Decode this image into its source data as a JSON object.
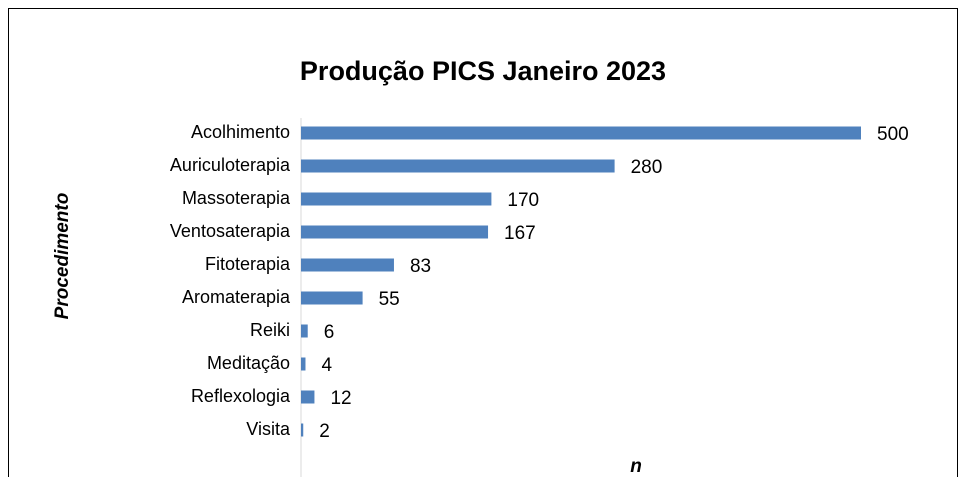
{
  "chart_data": {
    "type": "bar",
    "orientation": "horizontal",
    "title": "Produção PICS Janeiro 2023",
    "y_label": "Procedimento",
    "x_label": "n",
    "categories": [
      "Acolhimento",
      "Auriculoterapia",
      "Massoterapia",
      "Ventosaterapia",
      "Fitoterapia",
      "Aromaterapia",
      "Reiki",
      "Meditação",
      "Reflexologia",
      "Visita"
    ],
    "values": [
      500,
      280,
      170,
      167,
      83,
      55,
      6,
      4,
      12,
      2
    ],
    "color": "#4f81bd",
    "xlim": [
      0,
      500
    ]
  }
}
